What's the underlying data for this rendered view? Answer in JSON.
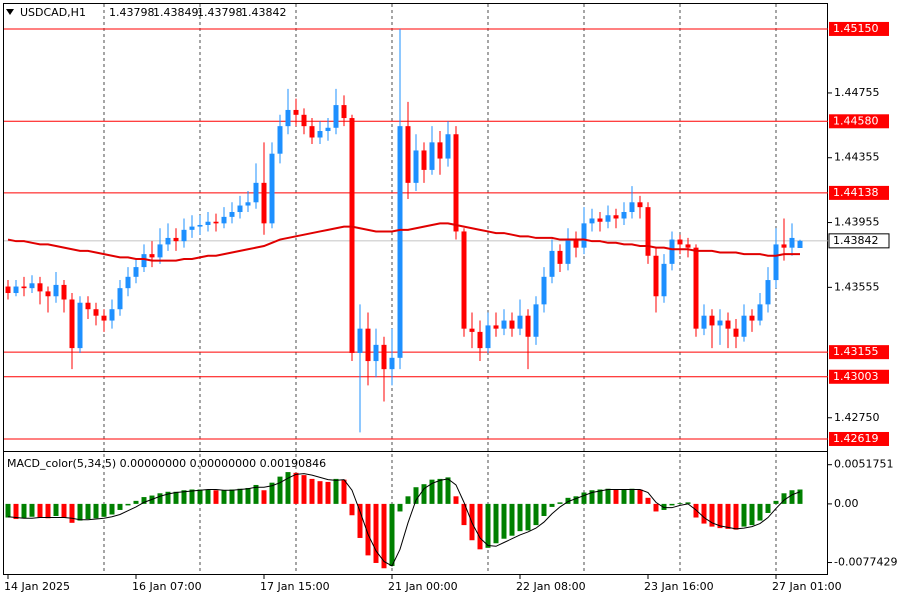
{
  "chart_data": {
    "type": "candlestick",
    "title": "USDCAD,H1",
    "candles": [
      [
        1.4356,
        1.436,
        1.4348,
        1.4352
      ],
      [
        1.4352,
        1.436,
        1.435,
        1.4356
      ],
      [
        1.4356,
        1.4362,
        1.435,
        1.4355
      ],
      [
        1.4355,
        1.4363,
        1.4352,
        1.4358
      ],
      [
        1.4358,
        1.4362,
        1.4345,
        1.4353
      ],
      [
        1.4353,
        1.4356,
        1.434,
        1.435
      ],
      [
        1.435,
        1.4365,
        1.4346,
        1.4357
      ],
      [
        1.4357,
        1.436,
        1.434,
        1.4348
      ],
      [
        1.4348,
        1.4352,
        1.4305,
        1.4318
      ],
      [
        1.4318,
        1.435,
        1.4315,
        1.4346
      ],
      [
        1.4346,
        1.435,
        1.4336,
        1.4342
      ],
      [
        1.4342,
        1.4346,
        1.4332,
        1.4338
      ],
      [
        1.4338,
        1.4342,
        1.4328,
        1.4335
      ],
      [
        1.4335,
        1.4348,
        1.433,
        1.4342
      ],
      [
        1.4342,
        1.436,
        1.4338,
        1.4355
      ],
      [
        1.4355,
        1.4368,
        1.435,
        1.4362
      ],
      [
        1.4362,
        1.4373,
        1.4358,
        1.4368
      ],
      [
        1.4368,
        1.4382,
        1.4365,
        1.4376
      ],
      [
        1.4376,
        1.4384,
        1.4368,
        1.4374
      ],
      [
        1.4374,
        1.4392,
        1.437,
        1.4382
      ],
      [
        1.4382,
        1.4395,
        1.4378,
        1.4386
      ],
      [
        1.4386,
        1.4392,
        1.4378,
        1.4384
      ],
      [
        1.4384,
        1.4398,
        1.438,
        1.4391
      ],
      [
        1.4391,
        1.44,
        1.4386,
        1.4393
      ],
      [
        1.4393,
        1.44,
        1.4388,
        1.4394
      ],
      [
        1.4394,
        1.4402,
        1.439,
        1.4396
      ],
      [
        1.4396,
        1.4401,
        1.439,
        1.4395
      ],
      [
        1.4395,
        1.4405,
        1.4392,
        1.4399
      ],
      [
        1.4399,
        1.4408,
        1.4395,
        1.4402
      ],
      [
        1.4402,
        1.4412,
        1.4398,
        1.4406
      ],
      [
        1.4406,
        1.4415,
        1.4402,
        1.4408
      ],
      [
        1.4408,
        1.4432,
        1.4404,
        1.442
      ],
      [
        1.442,
        1.4445,
        1.4388,
        1.4395
      ],
      [
        1.4395,
        1.4445,
        1.4392,
        1.4438
      ],
      [
        1.4438,
        1.4462,
        1.4432,
        1.4455
      ],
      [
        1.4455,
        1.4478,
        1.445,
        1.4465
      ],
      [
        1.4465,
        1.4472,
        1.4455,
        1.4462
      ],
      [
        1.4462,
        1.4466,
        1.445,
        1.4455
      ],
      [
        1.4455,
        1.446,
        1.4444,
        1.4448
      ],
      [
        1.4448,
        1.4458,
        1.4444,
        1.4452
      ],
      [
        1.4452,
        1.446,
        1.4446,
        1.4454
      ],
      [
        1.4454,
        1.4478,
        1.445,
        1.4468
      ],
      [
        1.4468,
        1.4474,
        1.4455,
        1.446
      ],
      [
        1.446,
        1.4462,
        1.431,
        1.4315
      ],
      [
        1.4315,
        1.4345,
        1.4266,
        1.433
      ],
      [
        1.433,
        1.434,
        1.4295,
        1.431
      ],
      [
        1.431,
        1.433,
        1.43,
        1.432
      ],
      [
        1.432,
        1.4325,
        1.4285,
        1.4305
      ],
      [
        1.4305,
        1.433,
        1.4295,
        1.4312
      ],
      [
        1.4312,
        1.4515,
        1.4305,
        1.4455
      ],
      [
        1.4455,
        1.447,
        1.441,
        1.442
      ],
      [
        1.442,
        1.445,
        1.4415,
        1.444
      ],
      [
        1.444,
        1.4445,
        1.442,
        1.4428
      ],
      [
        1.4428,
        1.4455,
        1.4425,
        1.4445
      ],
      [
        1.4445,
        1.4452,
        1.4425,
        1.4435
      ],
      [
        1.4435,
        1.4458,
        1.443,
        1.445
      ],
      [
        1.445,
        1.4455,
        1.4385,
        1.439
      ],
      [
        1.439,
        1.4392,
        1.4325,
        1.433
      ],
      [
        1.433,
        1.434,
        1.4318,
        1.4328
      ],
      [
        1.4328,
        1.4335,
        1.431,
        1.4318
      ],
      [
        1.4318,
        1.434,
        1.4315,
        1.4332
      ],
      [
        1.4332,
        1.434,
        1.4325,
        1.433
      ],
      [
        1.433,
        1.4342,
        1.4326,
        1.4335
      ],
      [
        1.4335,
        1.434,
        1.4325,
        1.433
      ],
      [
        1.433,
        1.4348,
        1.4326,
        1.4338
      ],
      [
        1.4338,
        1.4342,
        1.4305,
        1.4325
      ],
      [
        1.4325,
        1.435,
        1.432,
        1.4345
      ],
      [
        1.4345,
        1.4368,
        1.434,
        1.4362
      ],
      [
        1.4362,
        1.4385,
        1.4358,
        1.4378
      ],
      [
        1.4378,
        1.4382,
        1.4365,
        1.437
      ],
      [
        1.437,
        1.4392,
        1.4366,
        1.4385
      ],
      [
        1.4385,
        1.439,
        1.4374,
        1.438
      ],
      [
        1.438,
        1.4405,
        1.4376,
        1.4395
      ],
      [
        1.4395,
        1.4404,
        1.439,
        1.4398
      ],
      [
        1.4398,
        1.4402,
        1.439,
        1.4396
      ],
      [
        1.4396,
        1.4406,
        1.4392,
        1.44
      ],
      [
        1.44,
        1.4404,
        1.4392,
        1.4398
      ],
      [
        1.4398,
        1.4408,
        1.4394,
        1.4402
      ],
      [
        1.4402,
        1.4418,
        1.4398,
        1.4408
      ],
      [
        1.4408,
        1.4412,
        1.4398,
        1.4405
      ],
      [
        1.4405,
        1.4408,
        1.437,
        1.4375
      ],
      [
        1.4375,
        1.438,
        1.434,
        1.435
      ],
      [
        1.435,
        1.4376,
        1.4346,
        1.437
      ],
      [
        1.437,
        1.439,
        1.4366,
        1.4385
      ],
      [
        1.4385,
        1.4388,
        1.4376,
        1.4382
      ],
      [
        1.4382,
        1.4386,
        1.4374,
        1.438
      ],
      [
        1.438,
        1.4382,
        1.4325,
        1.433
      ],
      [
        1.433,
        1.4345,
        1.4326,
        1.4338
      ],
      [
        1.4338,
        1.4342,
        1.4318,
        1.4332
      ],
      [
        1.4332,
        1.4342,
        1.432,
        1.4335
      ],
      [
        1.4335,
        1.434,
        1.4318,
        1.433
      ],
      [
        1.433,
        1.4336,
        1.4318,
        1.4325
      ],
      [
        1.4325,
        1.4345,
        1.4322,
        1.4338
      ],
      [
        1.4338,
        1.4342,
        1.4328,
        1.4335
      ],
      [
        1.4335,
        1.4352,
        1.4332,
        1.4345
      ],
      [
        1.4345,
        1.4368,
        1.434,
        1.436
      ],
      [
        1.436,
        1.4392,
        1.4355,
        1.4382
      ],
      [
        1.4382,
        1.4398,
        1.4372,
        1.438
      ],
      [
        1.438,
        1.4395,
        1.4375,
        1.4386
      ],
      [
        1.43798,
        1.43849,
        1.43798,
        1.43842
      ]
    ],
    "up_color": "#1e90ff",
    "down_color": "#ff0000",
    "ma": [
      1.4385,
      1.4384,
      1.4384,
      1.4383,
      1.4382,
      1.4382,
      1.4381,
      1.438,
      1.4379,
      1.4378,
      1.4378,
      1.4377,
      1.4376,
      1.4375,
      1.4374,
      1.4374,
      1.4373,
      1.4373,
      1.4372,
      1.4372,
      1.4372,
      1.4372,
      1.4373,
      1.4373,
      1.4374,
      1.4375,
      1.4375,
      1.4376,
      1.4377,
      1.4378,
      1.4379,
      1.438,
      1.4381,
      1.4383,
      1.4385,
      1.4386,
      1.4387,
      1.4388,
      1.4389,
      1.439,
      1.4391,
      1.4392,
      1.4393,
      1.4393,
      1.4392,
      1.4391,
      1.439,
      1.439,
      1.439,
      1.4391,
      1.4391,
      1.4392,
      1.4393,
      1.4394,
      1.4395,
      1.4395,
      1.4394,
      1.4393,
      1.4392,
      1.4391,
      1.439,
      1.4389,
      1.4389,
      1.4388,
      1.4387,
      1.4387,
      1.4386,
      1.4386,
      1.4386,
      1.4385,
      1.4385,
      1.4385,
      1.4385,
      1.4384,
      1.4384,
      1.4383,
      1.4383,
      1.4382,
      1.4382,
      1.4381,
      1.4381,
      1.438,
      1.438,
      1.4379,
      1.4379,
      1.4379,
      1.4378,
      1.4378,
      1.4378,
      1.4377,
      1.4377,
      1.4377,
      1.4376,
      1.4376,
      1.4376,
      1.4375,
      1.4375,
      1.4376,
      1.4376,
      1.4376
    ],
    "ma_color": "#e00000",
    "ylim": [
      1.42551,
      1.45304
    ],
    "yticks": [
      1.44755,
      1.44355,
      1.43955,
      1.43555,
      {
        "value": 1.4275,
        "label": "1.42750"
      }
    ],
    "levels": [
      {
        "value": 1.4515,
        "label": "1.45150"
      },
      {
        "value": 1.4458,
        "label": "1.44580"
      },
      {
        "value": 1.44138,
        "label": "1.44138"
      },
      {
        "value": 1.43155,
        "label": "1.43155"
      },
      {
        "value": 1.43003,
        "label": "1.43003"
      },
      {
        "value": 1.42619,
        "label": "1.42619"
      }
    ],
    "level_color": "#ff0000",
    "x_labels": [
      "14 Jan 2025",
      "16 Jan 07:00",
      "17 Jan 15:00",
      "21 Jan 00:00",
      "22 Jan 08:00",
      "23 Jan 16:00",
      "27 Jan 01:00"
    ],
    "indicator_label": "MACD_color(5,34,5) 0.00000000 0.00000000 0.00190846",
    "macd": [
      -0.0018,
      -0.002,
      -0.0019,
      -0.0017,
      -0.0018,
      -0.0019,
      -0.0016,
      -0.0018,
      -0.0025,
      -0.0022,
      -0.002,
      -0.0019,
      -0.0017,
      -0.0014,
      -0.0008,
      -0.0002,
      0.0004,
      0.0009,
      0.0011,
      0.0014,
      0.0016,
      0.0016,
      0.0018,
      0.0019,
      0.0019,
      0.0019,
      0.0018,
      0.0018,
      0.0019,
      0.002,
      0.0021,
      0.0025,
      0.0018,
      0.0028,
      0.0036,
      0.0042,
      0.0041,
      0.0038,
      0.0033,
      0.003,
      0.0029,
      0.0033,
      0.0032,
      -0.0015,
      -0.0045,
      -0.0068,
      -0.0078,
      -0.0085,
      -0.0082,
      -0.001,
      0.001,
      0.0022,
      0.0026,
      0.0032,
      0.0033,
      0.0035,
      0.001,
      -0.0028,
      -0.0048,
      -0.006,
      -0.0058,
      -0.0052,
      -0.0046,
      -0.0042,
      -0.0036,
      -0.0035,
      -0.0028,
      -0.0016,
      -0.0004,
      0.0002,
      0.0008,
      0.001,
      0.0015,
      0.0018,
      0.0019,
      0.002,
      0.0019,
      0.0019,
      0.002,
      0.0019,
      0.0008,
      -0.001,
      -0.0008,
      -0.0002,
      0.0001,
      0.0002,
      -0.0018,
      -0.0026,
      -0.003,
      -0.0032,
      -0.0033,
      -0.0034,
      -0.003,
      -0.0028,
      -0.0022,
      -0.0012,
      0.0004,
      0.0014,
      0.0018,
      0.0019
    ],
    "signal": [
      -0.0017,
      -0.0018,
      -0.0019,
      -0.0019,
      -0.0018,
      -0.0018,
      -0.0018,
      -0.0018,
      -0.0019,
      -0.0021,
      -0.0021,
      -0.002,
      -0.0019,
      -0.0017,
      -0.0014,
      -0.0009,
      -0.0004,
      0.0002,
      0.0006,
      0.001,
      0.0013,
      0.0015,
      0.0016,
      0.0017,
      0.0018,
      0.0019,
      0.0019,
      0.0018,
      0.0018,
      0.0019,
      0.002,
      0.0022,
      0.0022,
      0.0024,
      0.0028,
      0.0034,
      0.0039,
      0.004,
      0.0038,
      0.0035,
      0.0032,
      0.0031,
      0.0032,
      0.0018,
      -0.001,
      -0.004,
      -0.0062,
      -0.0076,
      -0.0082,
      -0.006,
      -0.0025,
      0.0005,
      0.002,
      0.0027,
      0.0031,
      0.0033,
      0.0025,
      0.0002,
      -0.0025,
      -0.0045,
      -0.0055,
      -0.0056,
      -0.0051,
      -0.0046,
      -0.0041,
      -0.0037,
      -0.0032,
      -0.0024,
      -0.0013,
      -0.0004,
      0.0003,
      0.0007,
      0.0011,
      0.0015,
      0.0017,
      0.0019,
      0.0019,
      0.0019,
      0.0019,
      0.0019,
      0.0015,
      0.0002,
      -0.0005,
      -0.0005,
      -0.0002,
      0.0,
      -0.0008,
      -0.0018,
      -0.0025,
      -0.0029,
      -0.0031,
      -0.0033,
      -0.0032,
      -0.003,
      -0.0026,
      -0.0018,
      -0.0006,
      0.0005,
      0.0012,
      0.0016
    ],
    "macd_up_color": "#008000",
    "macd_down_color": "#ff0000",
    "signal_color": "#000000",
    "y2lim": [
      -0.00873,
      0.00672
    ],
    "y2ticks": [
      0.0051751,
      {
        "value": 0,
        "label": "0.00"
      },
      -0.0077429
    ]
  }
}
